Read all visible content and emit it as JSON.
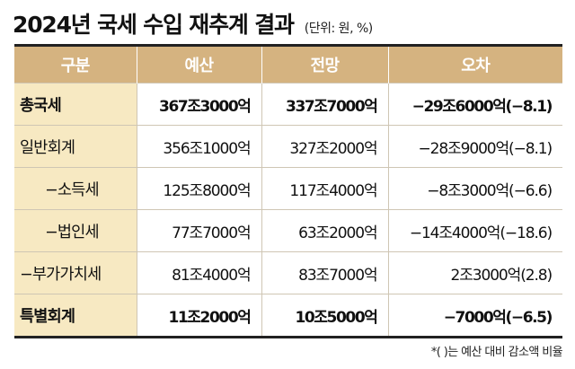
{
  "title": "2024년 국세 수입 재추계 결과",
  "unit": "(단위: 원, %)",
  "headers": [
    "구분",
    "예산",
    "전망",
    "오차"
  ],
  "rows": [
    {
      "label": "총국세",
      "budget": "367조3000억",
      "forecast": "337조7000억",
      "error": "−29조6000억(−8.1)"
    },
    {
      "label": "일반회계",
      "budget": "356조1000억",
      "forecast": "327조2000억",
      "error": "−28조9000억(−8.1)"
    },
    {
      "label": "−소득세",
      "budget": "125조8000억",
      "forecast": "117조4000억",
      "error": "−8조3000억(−6.6)"
    },
    {
      "label": "−법인세",
      "budget": "77조7000억",
      "forecast": "63조2000억",
      "error": "−14조4000억(−18.6)"
    },
    {
      "label": "−부가가치세",
      "budget": "81조4000억",
      "forecast": "83조7000억",
      "error": "2조3000억(2.8)"
    },
    {
      "label": "특별회계",
      "budget": "11조2000억",
      "forecast": "10조5000억",
      "error": "−7000억(−6.5)"
    }
  ],
  "footnote": "*(    )는 예산 대비 감소액 비율",
  "colors": {
    "header_bg": "#d5b380",
    "category_bg": "#f7e9c2",
    "rule": "#222222"
  }
}
